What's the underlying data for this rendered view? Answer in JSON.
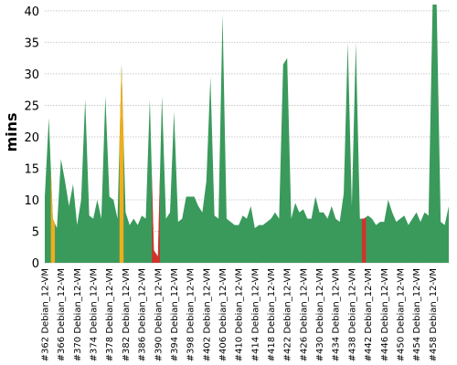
{
  "chart_data": {
    "type": "area",
    "title": "",
    "xlabel": "",
    "ylabel": "mins",
    "ylim": [
      0,
      41
    ],
    "y_ticks": [
      0,
      5,
      10,
      15,
      20,
      25,
      30,
      35,
      40
    ],
    "grid": "horizontal dotted",
    "legend": "none",
    "colors": {
      "stable": "#3a9a5c",
      "unstable": "#f0ad1e",
      "failed": "#d0342c"
    },
    "x_tick_labels": [
      "#362 Debian_12-VM",
      "#366 Debian_12-VM",
      "#370 Debian_12-VM",
      "#374 Debian_12-VM",
      "#378 Debian_12-VM",
      "#382 Debian_12-VM",
      "#386 Debian_12-VM",
      "#390 Debian_12-VM",
      "#394 Debian_12-VM",
      "#398 Debian_12-VM",
      "#402 Debian_12-VM",
      "#406 Debian_12-VM",
      "#410 Debian_12-VM",
      "#414 Debian_12-VM",
      "#418 Debian_12-VM",
      "#422 Debian_12-VM",
      "#426 Debian_12-VM",
      "#430 Debian_12-VM",
      "#434 Debian_12-VM",
      "#438 Debian_12-VM",
      "#442 Debian_12-VM",
      "#446 Debian_12-VM",
      "#450 Debian_12-VM",
      "#454 Debian_12-VM",
      "#458 Debian_12-VM"
    ],
    "builds_first": 362,
    "values": [
      10.5,
      23.0,
      7.0,
      5.5,
      16.5,
      13.0,
      9.0,
      12.5,
      6.0,
      10.0,
      26.0,
      7.5,
      7.0,
      10.0,
      7.0,
      26.5,
      10.5,
      10.0,
      7.0,
      31.5,
      8.0,
      6.0,
      7.0,
      6.0,
      7.5,
      7.0,
      26.0,
      2.0,
      1.0,
      26.5,
      7.0,
      8.0,
      24.0,
      6.5,
      7.0,
      10.5,
      10.5,
      10.5,
      9.0,
      8.0,
      13.0,
      29.5,
      7.5,
      7.0,
      39.5,
      7.0,
      6.5,
      6.0,
      6.0,
      7.5,
      7.0,
      9.0,
      5.5,
      6.0,
      6.0,
      6.5,
      7.0,
      8.0,
      7.0,
      31.5,
      32.5,
      7.0,
      9.5,
      8.0,
      8.5,
      7.0,
      7.0,
      10.5,
      8.0,
      8.0,
      7.0,
      9.0,
      7.0,
      6.5,
      11.0,
      35.0,
      9.0,
      35.0,
      7.0,
      7.0,
      7.5,
      7.0,
      6.0,
      6.5,
      6.5,
      10.0,
      8.0,
      6.5,
      7.0,
      7.5,
      6.0,
      7.0,
      8.0,
      6.5,
      8.0,
      7.5,
      41.0,
      41.0,
      6.5,
      6.0,
      9.0
    ],
    "unstable_builds": [
      364,
      381
    ],
    "failed_builds": [
      389,
      390,
      441
    ]
  }
}
